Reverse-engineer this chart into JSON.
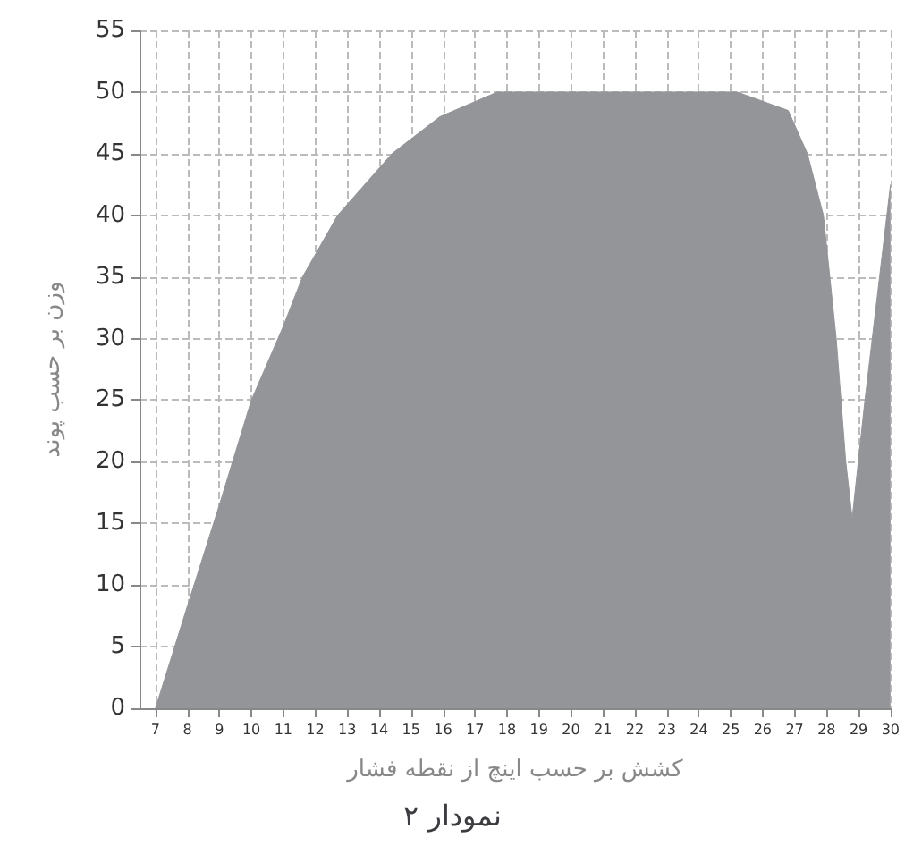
{
  "chart_data": {
    "type": "area",
    "title": "نمودار ۲",
    "xlabel": "کشش بر حسب اینچ از نقطه فشار",
    "ylabel": "وزن بر حسب پوند",
    "x": [
      7,
      8,
      9,
      10,
      11,
      11.6,
      12.7,
      14.4,
      15.9,
      17.7,
      25.2,
      26.8,
      27.4,
      27.9,
      28.3,
      28.6,
      28.8,
      29.2,
      30
    ],
    "series": [
      {
        "color": "#939598",
        "values": [
          0,
          8.3,
          16.5,
          25,
          31,
          35,
          40,
          45,
          48,
          50,
          50,
          48.5,
          45,
          40,
          30,
          20,
          15.4,
          25,
          42.5
        ]
      }
    ],
    "xlim": [
      6.5,
      30
    ],
    "xticks": [
      7,
      8,
      9,
      10,
      11,
      12,
      13,
      14,
      15,
      16,
      17,
      18,
      19,
      20,
      21,
      22,
      23,
      24,
      25,
      26,
      27,
      28,
      29,
      30
    ],
    "ylim": [
      0,
      55
    ],
    "yticks": [
      0,
      5,
      10,
      15,
      20,
      25,
      30,
      35,
      40,
      45,
      50,
      55
    ],
    "grid": true,
    "line_style": "solid",
    "marker": "none"
  }
}
